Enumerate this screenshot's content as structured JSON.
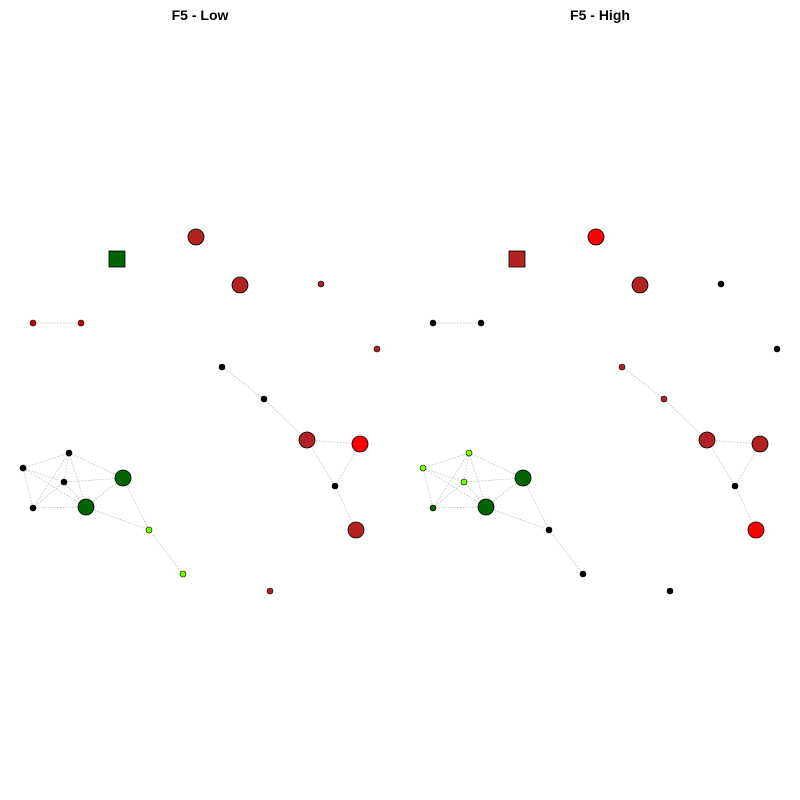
{
  "panels": [
    {
      "title": "F5 - Low",
      "node_colors": {
        "sq": "#006400",
        "n1": "#b22222",
        "n2": "#b22222",
        "n3": "#b22222",
        "n4": "#b22222",
        "p1": "#cc0000",
        "p2": "#cc0000",
        "c1": "#000000",
        "c2": "#000000",
        "e1": "#b22222",
        "e2": "#ff0000",
        "e3": "#000000",
        "e4": "#b22222",
        "g1": "#000000",
        "g2": "#000000",
        "g3": "#000000",
        "g4": "#000000",
        "G1": "#006400",
        "G2": "#006400",
        "l1": "#7cfc00",
        "l2": "#7cfc00",
        "x1": "#b22222"
      }
    },
    {
      "title": "F5 - High",
      "node_colors": {
        "sq": "#b22222",
        "n1": "#ff0000",
        "n2": "#b22222",
        "n3": "#000000",
        "n4": "#000000",
        "p1": "#000000",
        "p2": "#000000",
        "c1": "#b22222",
        "c2": "#b22222",
        "e1": "#b22222",
        "e2": "#b22222",
        "e3": "#000000",
        "e4": "#ff0000",
        "g1": "#7cfc00",
        "g2": "#7cfc00",
        "g3": "#7cfc00",
        "g4": "#006400",
        "G1": "#006400",
        "G2": "#006400",
        "l1": "#000000",
        "l2": "#000000",
        "x1": "#000000"
      }
    }
  ],
  "edge_color": "#bbbbbb"
}
